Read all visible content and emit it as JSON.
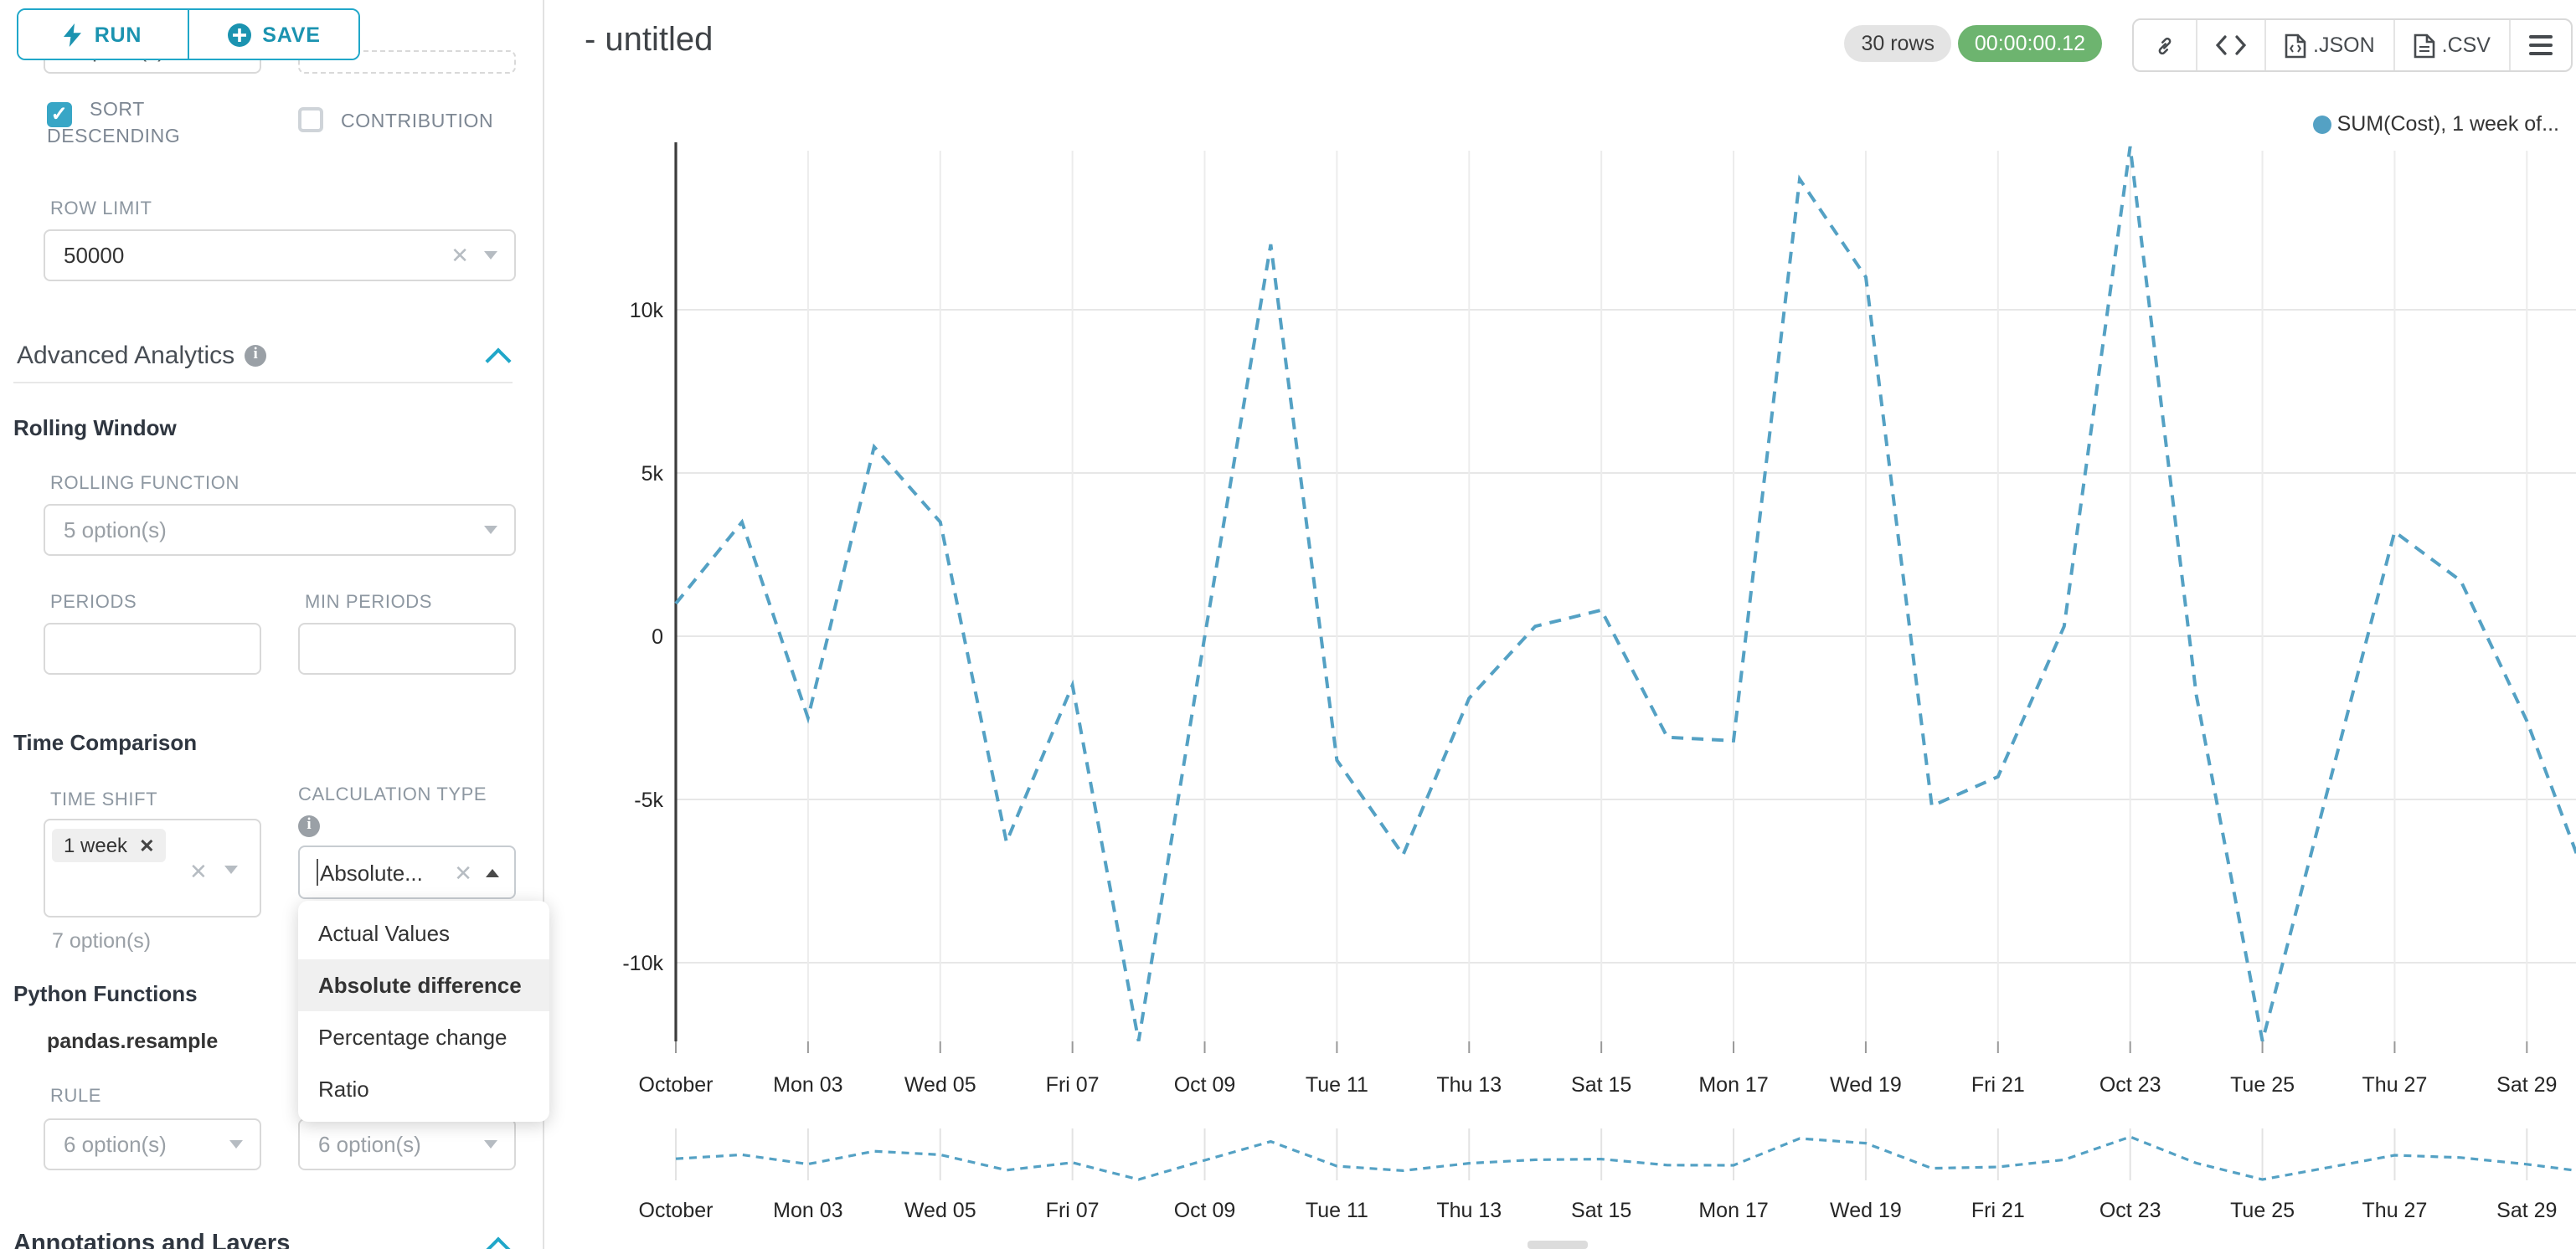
{
  "accent": "#20a7c9",
  "toolbar": {
    "run_label": "RUN",
    "save_label": "SAVE"
  },
  "sidebar": {
    "top_row": {
      "left_select_value": "7 option(s)"
    },
    "sort_descending": {
      "label": "SORT DESCENDING",
      "checked": true
    },
    "contribution": {
      "label": "CONTRIBUTION",
      "checked": false
    },
    "row_limit": {
      "label": "ROW LIMIT",
      "value": "50000"
    },
    "advanced_analytics": {
      "title": "Advanced Analytics"
    },
    "rolling_window": {
      "title": "Rolling Window",
      "rolling_function": {
        "label": "ROLLING FUNCTION",
        "placeholder": "5 option(s)"
      },
      "periods": {
        "label": "PERIODS",
        "value": ""
      },
      "min_periods": {
        "label": "MIN PERIODS",
        "value": ""
      }
    },
    "time_comparison": {
      "title": "Time Comparison",
      "time_shift": {
        "label": "TIME SHIFT",
        "tag": "1 week",
        "hint": "7 option(s)"
      },
      "calculation_type": {
        "label": "CALCULATION TYPE",
        "value": "Absolute...",
        "selected_option": "Absolute difference",
        "options": [
          "Actual Values",
          "Absolute difference",
          "Percentage change",
          "Ratio"
        ]
      }
    },
    "python_functions": {
      "title": "Python Functions",
      "subtitle": "pandas.resample",
      "rule": {
        "label": "RULE",
        "placeholder": "6 option(s)"
      },
      "method": {
        "placeholder": "6 option(s)"
      }
    },
    "annotations": {
      "title": "Annotations and Layers"
    }
  },
  "header": {
    "title": "- untitled",
    "rows_badge": "30 rows",
    "timer_badge": "00:00:00.12",
    "json_label": ".JSON",
    "csv_label": ".CSV"
  },
  "legend": {
    "label": "SUM(Cost), 1 week of...",
    "color": "#54a1c4"
  },
  "chart_data": {
    "type": "line",
    "title": "",
    "line_style": "dashed",
    "color": "#54a1c4",
    "grid": true,
    "legend_position": "top-right",
    "categories": [
      "Oct 01",
      "Oct 02",
      "Oct 03",
      "Oct 04",
      "Oct 05",
      "Oct 06",
      "Oct 07",
      "Oct 08",
      "Oct 09",
      "Oct 10",
      "Oct 11",
      "Oct 12",
      "Oct 13",
      "Oct 14",
      "Oct 15",
      "Oct 16",
      "Oct 17",
      "Oct 18",
      "Oct 19",
      "Oct 20",
      "Oct 21",
      "Oct 22",
      "Oct 23",
      "Oct 24",
      "Oct 25",
      "Oct 26",
      "Oct 27",
      "Oct 28",
      "Oct 29",
      "Oct 30"
    ],
    "series": [
      {
        "name": "SUM(Cost), 1 week offset",
        "values": [
          1000,
          3500,
          -2500,
          5800,
          3500,
          -6300,
          -1500,
          -12400,
          0,
          12000,
          -3800,
          -6700,
          -1900,
          300,
          800,
          -3100,
          -3200,
          14000,
          11000,
          -5200,
          -4300,
          300,
          15000,
          -1800,
          -12400,
          -4600,
          3200,
          1700,
          -2600,
          -8000
        ]
      }
    ],
    "xlabel": "",
    "ylabel": "",
    "ylim": [
      -12700,
      15300
    ],
    "y_ticks": [
      {
        "v": 10000,
        "label": "10k"
      },
      {
        "v": 5000,
        "label": "5k"
      },
      {
        "v": 0,
        "label": "0"
      },
      {
        "v": -5000,
        "label": "-5k"
      },
      {
        "v": -10000,
        "label": "-10k"
      }
    ],
    "x_ticks": {
      "days": [
        1,
        3,
        5,
        7,
        9,
        11,
        13,
        15,
        17,
        19,
        21,
        23,
        25,
        27,
        29
      ],
      "labels": [
        "October",
        "Mon 03",
        "Wed 05",
        "Fri 07",
        "Oct 09",
        "Tue 11",
        "Thu 13",
        "Sat 15",
        "Mon 17",
        "Wed 19",
        "Fri 21",
        "Oct 23",
        "Tue 25",
        "Thu 27",
        "Sat 29"
      ]
    },
    "has_range_chart": true
  }
}
